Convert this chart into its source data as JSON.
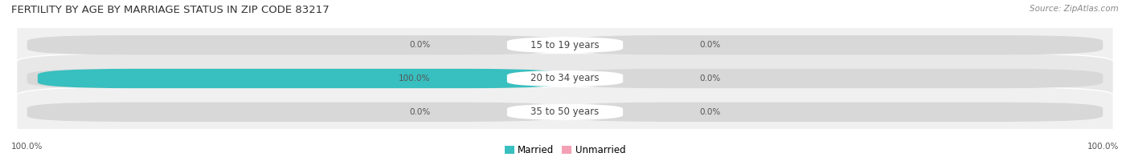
{
  "title": "FERTILITY BY AGE BY MARRIAGE STATUS IN ZIP CODE 83217",
  "source": "Source: ZipAtlas.com",
  "rows": [
    {
      "label": "15 to 19 years",
      "married": 0.0,
      "unmarried": 0.0
    },
    {
      "label": "20 to 34 years",
      "married": 100.0,
      "unmarried": 0.0
    },
    {
      "label": "35 to 50 years",
      "married": 0.0,
      "unmarried": 0.0
    }
  ],
  "married_color": "#38bfbf",
  "unmarried_color": "#f4a0b4",
  "bar_bg_color_light": "#e2e2e2",
  "row_bg_colors": [
    "#f0f0f0",
    "#e8e8e8",
    "#f0f0f0"
  ],
  "label_fontsize": 8.5,
  "title_fontsize": 9.5,
  "source_fontsize": 7.5,
  "bar_height": 0.58,
  "legend_married": "Married",
  "legend_unmarried": "Unmarried",
  "left_axis_label": "100.0%",
  "right_axis_label": "100.0%",
  "tick_fontsize": 7.5,
  "value_fontsize": 7.5
}
